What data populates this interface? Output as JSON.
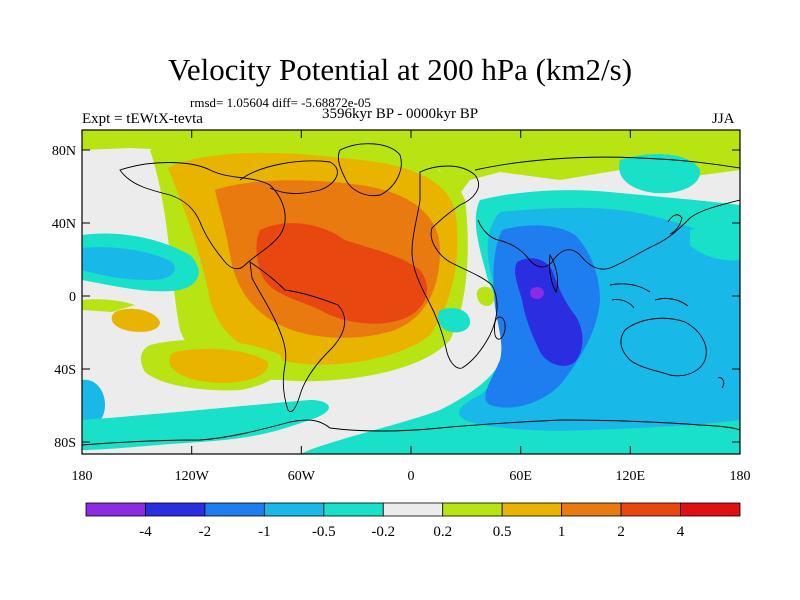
{
  "title": "Velocity Potential at 200 hPa (km2/s)",
  "stats": "rmsd= 1.05604 diff= -5.68872e-05",
  "experiment": "Expt = tEWtX-tevta",
  "period": "3596kyr BP - 0000kyr BP",
  "season": "JJA",
  "axes": {
    "x_ticks": [
      "180",
      "120W",
      "60W",
      "0",
      "60E",
      "120E",
      "180"
    ],
    "y_ticks": [
      "80N",
      "40N",
      "0",
      "40S",
      "80S"
    ]
  },
  "colorbar": {
    "labels": [
      "-4",
      "-2",
      "-1",
      "-0.5",
      "-0.2",
      "0.2",
      "0.5",
      "1",
      "2",
      "4"
    ],
    "colors": [
      "#8b2be2",
      "#2a2ee0",
      "#1e7ef0",
      "#18b8e8",
      "#19e0c8",
      "#ececec",
      "#b8e414",
      "#e8b400",
      "#e87a10",
      "#e84810",
      "#e01010"
    ]
  },
  "palette": {
    "strong_negative": "#5a24d8",
    "land_outline": "#000000"
  }
}
